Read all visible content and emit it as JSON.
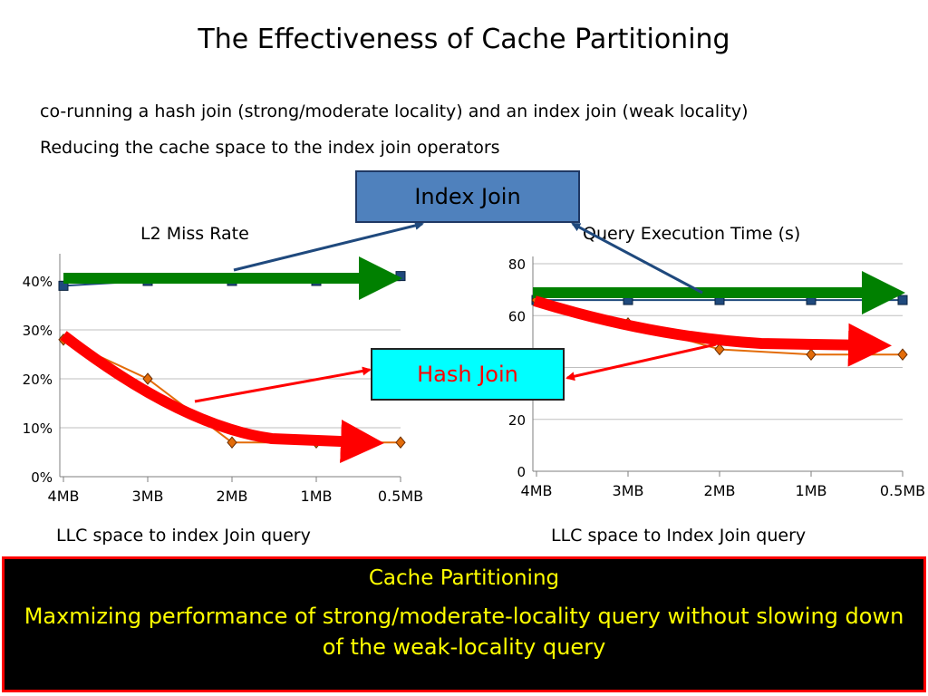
{
  "title": "The Effectiveness of Cache Partitioning",
  "subtitle_line1": "co-running a hash join (strong/moderate locality) and an index join (weak locality)",
  "subtitle_line2": "Reducing the cache space  to the index join operators",
  "callouts": {
    "index_join": "Index Join",
    "hash_join": "Hash Join"
  },
  "banner": {
    "heading": "Cache Partitioning",
    "body": "Maxmizing performance of strong/moderate-locality query without slowing down of the weak-locality query"
  },
  "colors": {
    "index_arrow": "#008000",
    "hash_arrow": "#ff0000",
    "pointer_blue": "#1f497d",
    "series_orange": "#e36c09"
  },
  "chart_data": [
    {
      "type": "line",
      "title": "L2 Miss Rate",
      "xlabel": "LLC  space  to index Join query",
      "categories": [
        "4MB",
        "3MB",
        "2MB",
        "1MB",
        "0.5MB"
      ],
      "ylim": [
        0,
        40
      ],
      "yticks": [
        "0%",
        "10%",
        "20%",
        "30%",
        "40%"
      ],
      "grid": true,
      "series": [
        {
          "values": [
            39,
            40,
            40,
            40,
            41
          ],
          "marker": "square",
          "color": "#1f497d"
        },
        {
          "values": [
            28,
            20,
            7,
            7,
            7
          ],
          "marker": "diamond",
          "color": "#e36c09"
        }
      ]
    },
    {
      "type": "line",
      "title": "Query Execution Time (s)",
      "xlabel": "LLC space to Index Join query",
      "categories": [
        "4MB",
        "3MB",
        "2MB",
        "1MB",
        "0.5MB"
      ],
      "ylim": [
        0,
        80
      ],
      "yticks": [
        "0",
        "20",
        "40",
        "60",
        "80"
      ],
      "grid": true,
      "series": [
        {
          "values": [
            66,
            66,
            66,
            66,
            66
          ],
          "marker": "square",
          "color": "#1f497d"
        },
        {
          "values": [
            66,
            57,
            47,
            45,
            45
          ],
          "marker": "diamond",
          "color": "#e36c09"
        }
      ]
    }
  ]
}
